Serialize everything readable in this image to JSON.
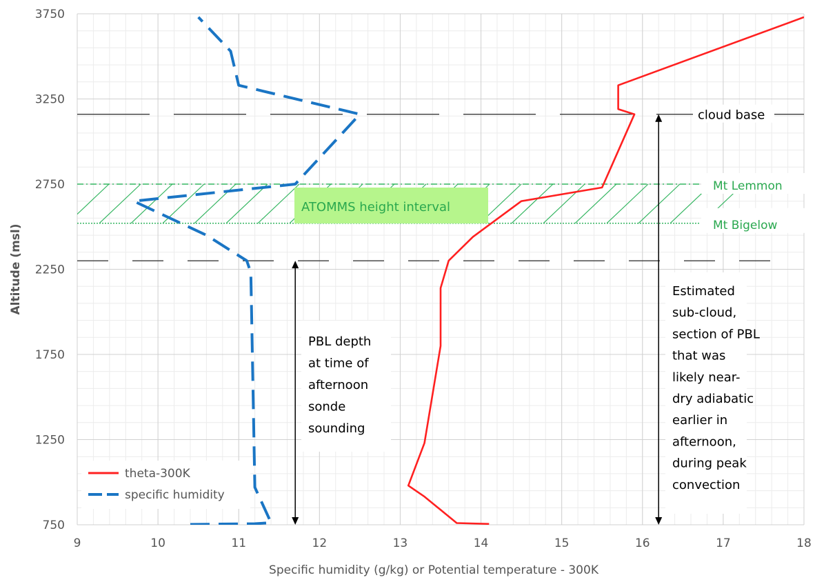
{
  "chart_data": {
    "type": "line",
    "title": "",
    "xlabel": "Specific humidity (g/kg)  or  Potential temperature - 300K",
    "ylabel": "Altitude (msl)",
    "xlim": [
      9,
      18
    ],
    "ylim": [
      750,
      3750
    ],
    "x_ticks": [
      "9",
      "10",
      "11",
      "12",
      "13",
      "14",
      "15",
      "16",
      "17",
      "18"
    ],
    "y_ticks": [
      "750",
      "1250",
      "1750",
      "2250",
      "2750",
      "3250",
      "3750"
    ],
    "grid": true,
    "legend_position": "bottom-left",
    "series": [
      {
        "name": "theta-300K",
        "color": "#ff2020",
        "style": "solid",
        "points": [
          [
            14.1,
            755
          ],
          [
            13.7,
            760
          ],
          [
            13.3,
            915
          ],
          [
            13.1,
            980
          ],
          [
            13.3,
            1230
          ],
          [
            13.5,
            1800
          ],
          [
            13.5,
            2140
          ],
          [
            13.6,
            2300
          ],
          [
            13.9,
            2440
          ],
          [
            14.5,
            2650
          ],
          [
            15.5,
            2730
          ],
          [
            15.9,
            3160
          ],
          [
            15.7,
            3190
          ],
          [
            15.7,
            3330
          ],
          [
            18.0,
            3730
          ]
        ]
      },
      {
        "name": "specific humidity",
        "color": "#1a75c4",
        "style": "dashed",
        "points": [
          [
            10.4,
            752
          ],
          [
            11.2,
            756
          ],
          [
            11.4,
            762
          ],
          [
            11.2,
            970
          ],
          [
            11.15,
            2230
          ],
          [
            11.1,
            2300
          ],
          [
            10.6,
            2450
          ],
          [
            9.7,
            2650
          ],
          [
            11.7,
            2750
          ],
          [
            12.5,
            3160
          ],
          [
            11.0,
            3330
          ],
          [
            10.9,
            3530
          ],
          [
            10.5,
            3730
          ]
        ]
      }
    ],
    "reference_lines": {
      "cloud_base_altitude": 3160,
      "pbl_top_altitude": 2300,
      "mt_lemmon_altitude": 2750,
      "mt_bigelow_altitude": 2520,
      "pbl_arrow_x": 11.7,
      "subcloud_arrow_x": 16.2
    },
    "annotations": {
      "cloud_base": "cloud base",
      "mt_lemmon": "Mt Lemmon",
      "mt_bigelow": "Mt Bigelow",
      "atomms": "ATOMMS height interval",
      "pbl_depth": [
        "PBL depth",
        "at time of",
        "afternoon",
        "sonde",
        "sounding"
      ],
      "subcloud": [
        "Estimated",
        "sub-cloud,",
        "section of PBL",
        "that was",
        "likely near-",
        "dry adiabatic",
        "earlier in",
        "afternoon,",
        "during peak",
        "convection"
      ]
    },
    "colors": {
      "hatch": "#33b560",
      "atomms_box": "#b6f58c",
      "atomms_text": "#2aa84f",
      "grid_major": "#d0d0d0",
      "grid_minor": "#ececec",
      "axis_text": "#555555"
    }
  }
}
